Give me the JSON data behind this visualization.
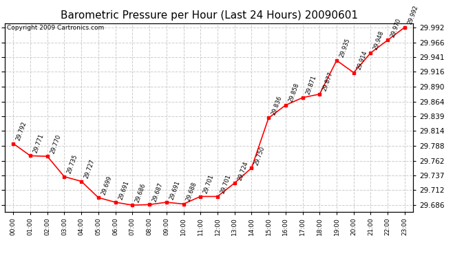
{
  "title": "Barometric Pressure per Hour (Last 24 Hours) 20090601",
  "copyright": "Copyright 2009 Cartronics.com",
  "hours": [
    "00:00",
    "01:00",
    "02:00",
    "03:00",
    "04:00",
    "05:00",
    "06:00",
    "07:00",
    "08:00",
    "09:00",
    "10:00",
    "11:00",
    "12:00",
    "13:00",
    "14:00",
    "15:00",
    "16:00",
    "17:00",
    "18:00",
    "19:00",
    "20:00",
    "21:00",
    "22:00",
    "23:00"
  ],
  "values": [
    29.792,
    29.771,
    29.77,
    29.735,
    29.727,
    29.699,
    29.691,
    29.686,
    29.687,
    29.691,
    29.688,
    29.701,
    29.701,
    29.724,
    29.75,
    29.836,
    29.858,
    29.871,
    29.877,
    29.935,
    29.914,
    29.948,
    29.97,
    29.992
  ],
  "yticks": [
    29.686,
    29.712,
    29.737,
    29.762,
    29.788,
    29.814,
    29.839,
    29.864,
    29.89,
    29.916,
    29.941,
    29.966,
    29.992
  ],
  "ylim_min": 29.675,
  "ylim_max": 29.999,
  "line_color": "red",
  "marker_color": "red",
  "marker_size": 3,
  "grid_color": "#cccccc",
  "bg_color": "white",
  "title_fontsize": 11,
  "copyright_fontsize": 6.5,
  "label_fontsize": 6,
  "label_rotation": 70
}
